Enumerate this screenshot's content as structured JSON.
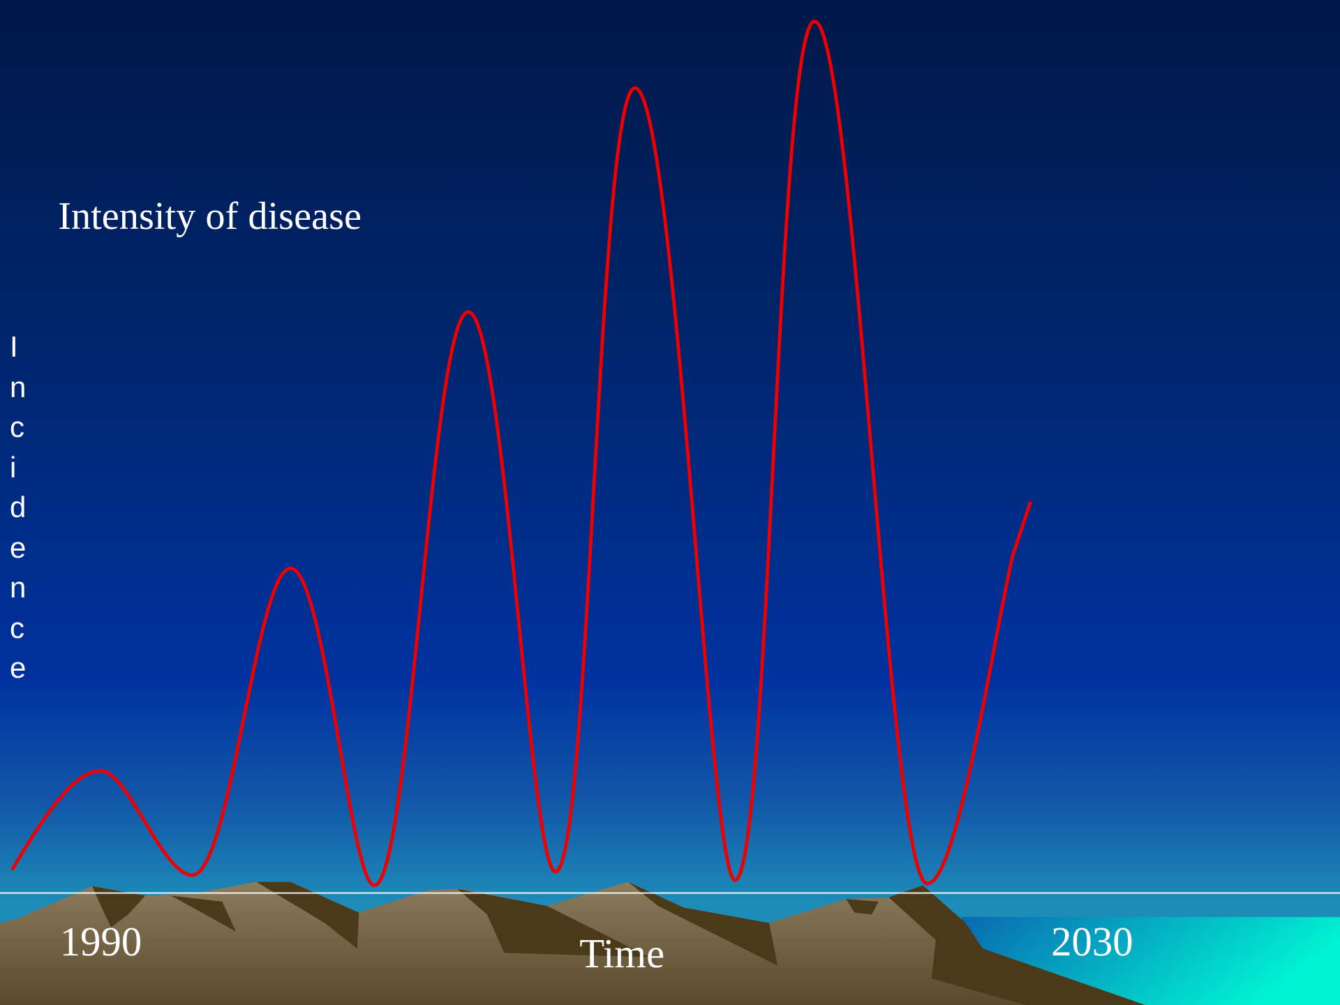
{
  "title": "Intensity of disease",
  "y_axis_label": "Incidence",
  "x_axis": {
    "start": "1990",
    "end": "2030",
    "label": "Time"
  }
}
